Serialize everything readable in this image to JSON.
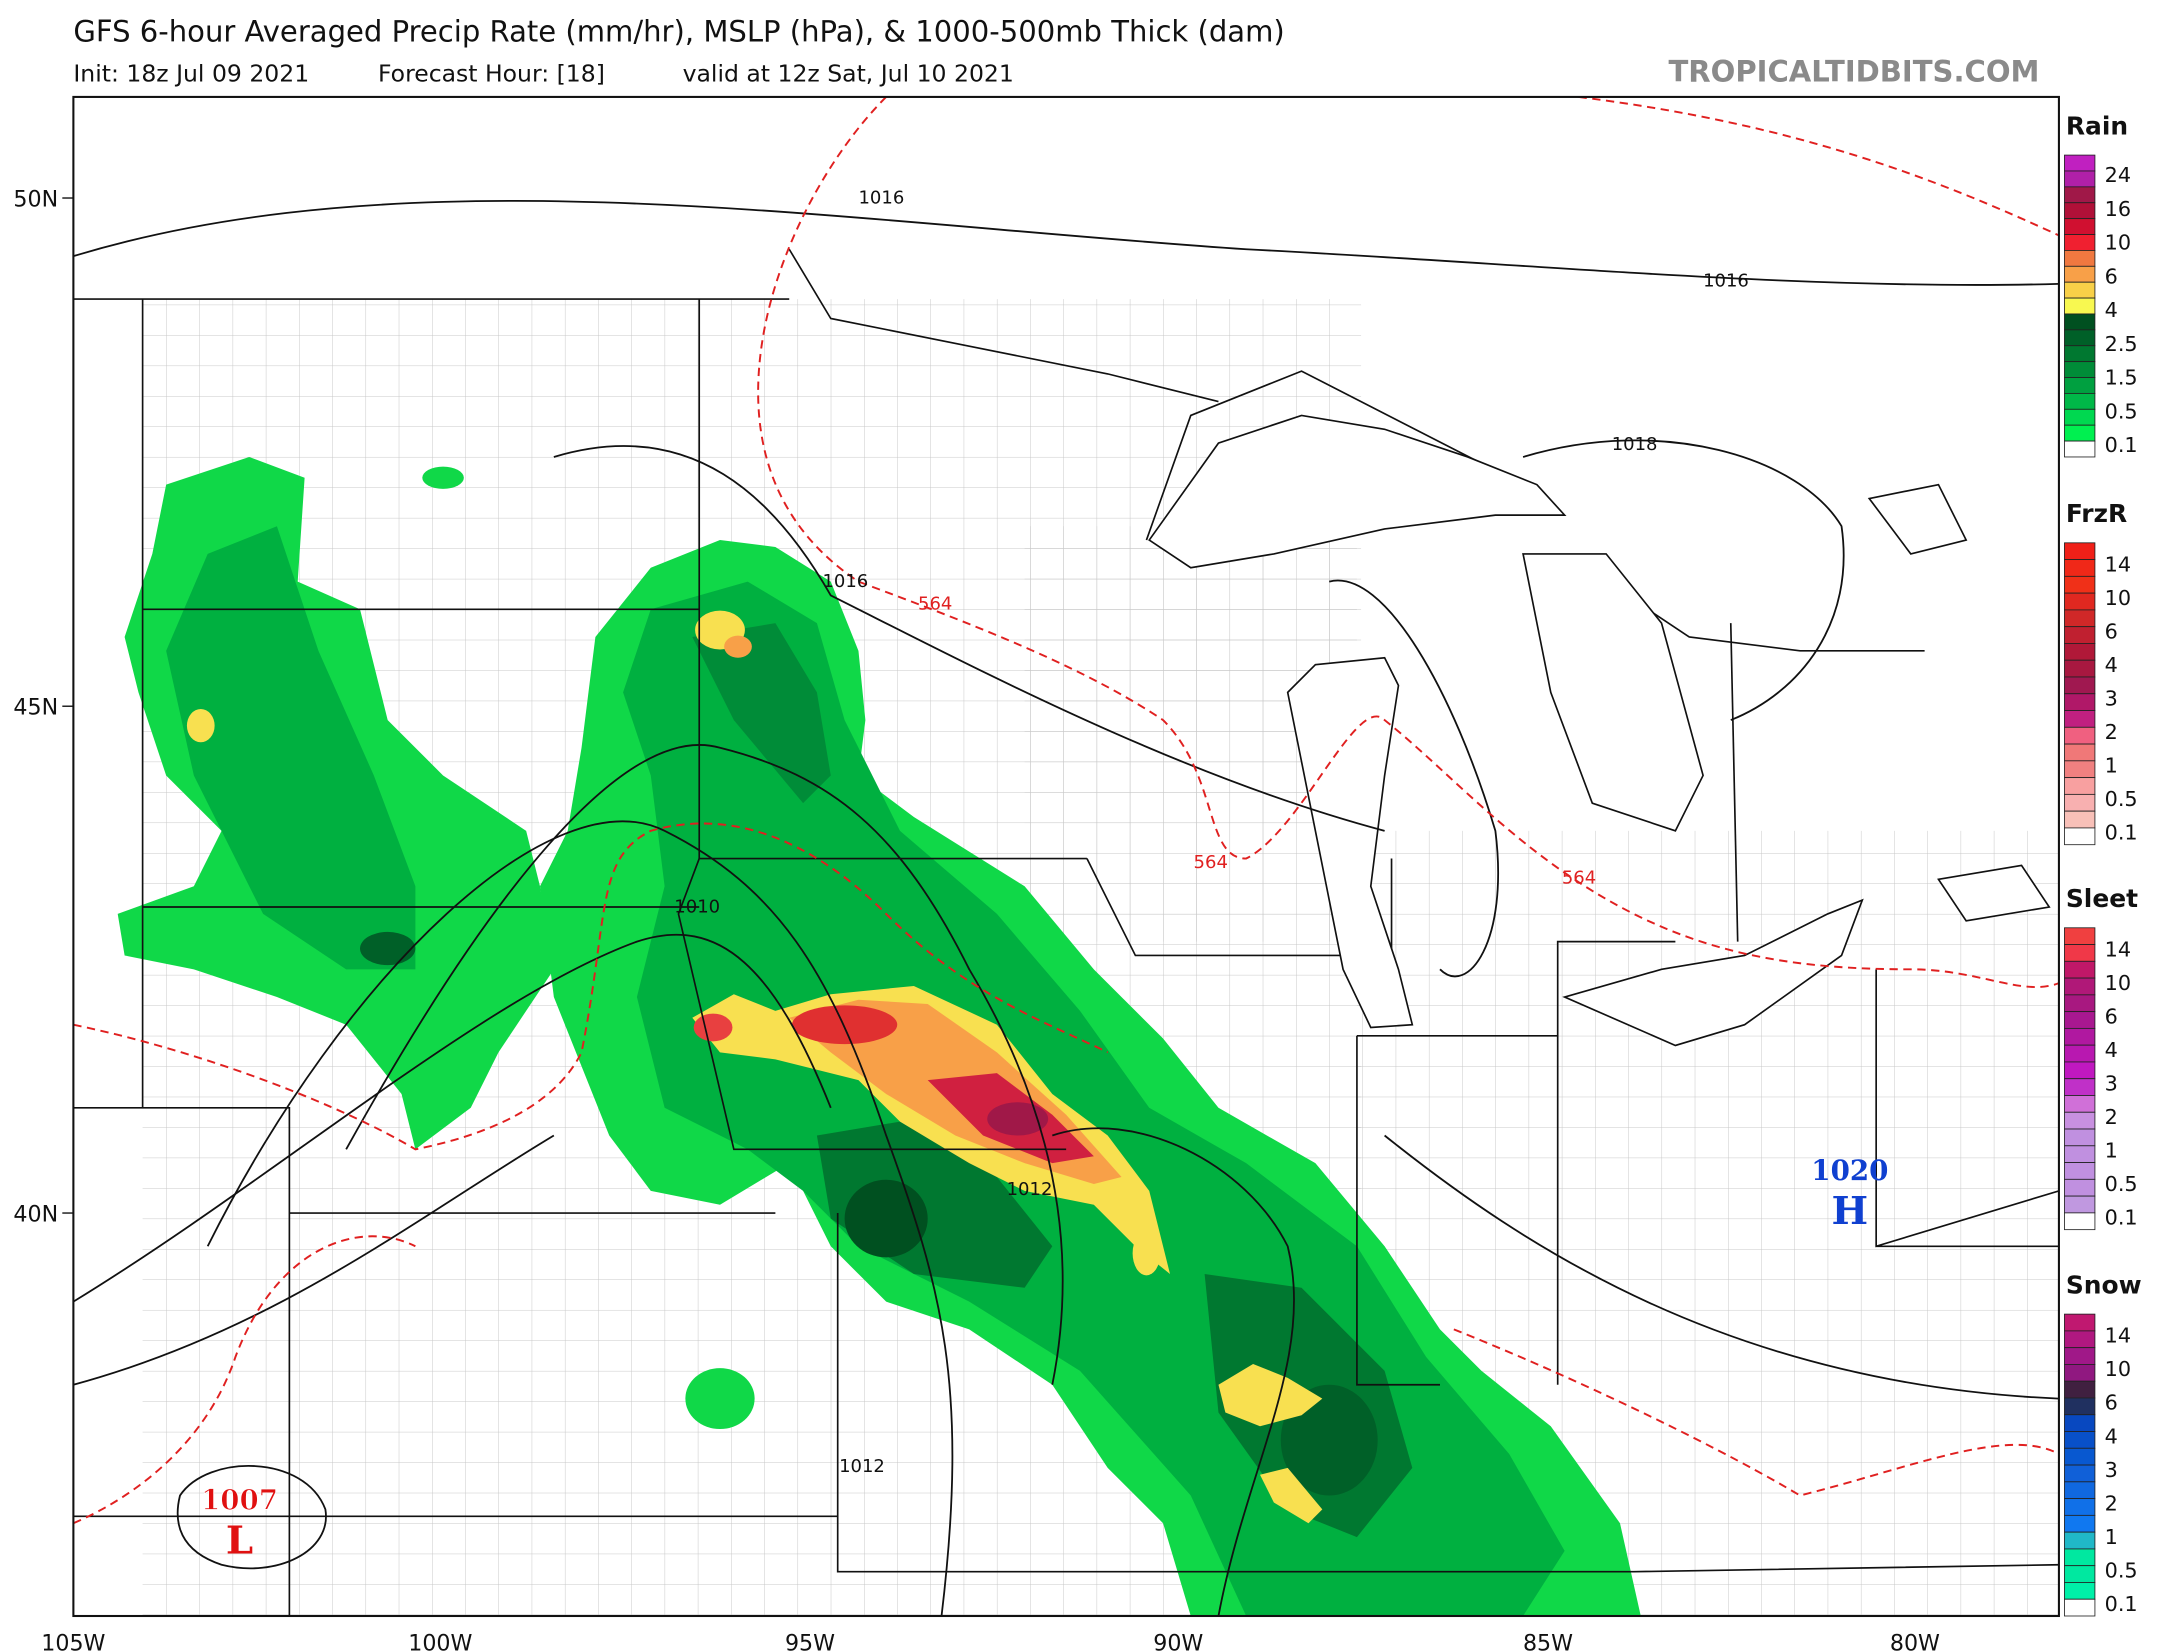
{
  "header": {
    "title": "GFS 6-hour Averaged Precip Rate (mm/hr), MSLP (hPa), & 1000-500mb Thick (dam)",
    "subtitle_init": "Init: 18z Jul 09 2021",
    "subtitle_hour": "Forecast Hour: [18]",
    "subtitle_valid": "valid at 12z Sat, Jul 10 2021",
    "brand": "TROPICALTIDBITS.COM"
  },
  "axes": {
    "lat_labels": [
      "50N",
      "45N",
      "40N"
    ],
    "lon_labels": [
      "105W",
      "100W",
      "95W",
      "90W",
      "85W",
      "80W"
    ]
  },
  "map_labels": {
    "isobars": [
      "1016",
      "1016",
      "1016",
      "1010",
      "1018",
      "1012",
      "1012"
    ],
    "thickness": [
      "564",
      "564",
      "564"
    ],
    "low_value": "1007",
    "low_letter": "L",
    "high_value": "1020",
    "high_letter": "H"
  },
  "colors": {
    "low": "#e01010",
    "high": "#1040d0",
    "thickness_line": "#e02020",
    "isobar_line": "#111111"
  },
  "legend": {
    "rain": {
      "title": "Rain",
      "labels": [
        "24",
        "16",
        "10",
        "6",
        "4",
        "2.5",
        "1.5",
        "0.5",
        "0.1"
      ],
      "colors": [
        "#c020c0",
        "#b020a8",
        "#a01848",
        "#b01038",
        "#d01030",
        "#f02030",
        "#f07840",
        "#f8a048",
        "#f8d048",
        "#f8f850",
        "#005020",
        "#006028",
        "#007830",
        "#008c38",
        "#00a040",
        "#00b848",
        "#00d850",
        "#00f050",
        "#ffffff"
      ]
    },
    "frzr": {
      "title": "FrzR",
      "labels": [
        "14",
        "10",
        "6",
        "4",
        "3",
        "2",
        "1",
        "0.5",
        "0.1"
      ],
      "colors": [
        "#f02018",
        "#f02818",
        "#f03018",
        "#e02820",
        "#d02828",
        "#c02030",
        "#b01838",
        "#a81840",
        "#a01850",
        "#b01868",
        "#c02080",
        "#f06080",
        "#f07878",
        "#f08080",
        "#f8a0a0",
        "#f8b0b0",
        "#f8c0b8",
        "#ffffff"
      ]
    },
    "sleet": {
      "title": "Sleet",
      "labels": [
        "14",
        "10",
        "6",
        "4",
        "3",
        "2",
        "1",
        "0.5",
        "0.1"
      ],
      "colors": [
        "#f04040",
        "#f03848",
        "#c01868",
        "#b01878",
        "#a81880",
        "#a81890",
        "#b018a0",
        "#b818b0",
        "#c018c0",
        "#c030c8",
        "#d070d8",
        "#c890e0",
        "#c090e0",
        "#c090e0",
        "#c090e0",
        "#c090e0",
        "#c098e0",
        "#ffffff"
      ]
    },
    "snow": {
      "title": "Snow",
      "labels": [
        "14",
        "10",
        "6",
        "4",
        "3",
        "2",
        "1",
        "0.5",
        "0.1"
      ],
      "colors": [
        "#c01870",
        "#b01880",
        "#a01888",
        "#901880",
        "#402040",
        "#203060",
        "#0848c0",
        "#0850c8",
        "#0858d0",
        "#1060d8",
        "#1068e0",
        "#1070e8",
        "#1078f0",
        "#20b8c8",
        "#00e8a0",
        "#00e8a0",
        "#00f0a8",
        "#ffffff"
      ]
    }
  }
}
